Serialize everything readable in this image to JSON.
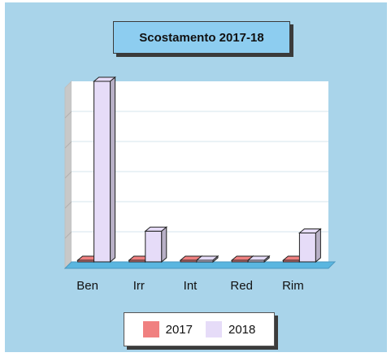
{
  "chart_data": {
    "type": "bar",
    "title": "Scostamento 2017-18",
    "categories": [
      "Ben",
      "Irr",
      "Int",
      "Red",
      "Rim"
    ],
    "series": [
      {
        "name": "2017",
        "color": "#f08080",
        "values": [
          0,
          0,
          0,
          0,
          0
        ]
      },
      {
        "name": "2018",
        "color": "#e6dcf8",
        "values": [
          100,
          17,
          0,
          0,
          16
        ]
      }
    ],
    "ylim": [
      0,
      100
    ],
    "grid": true,
    "legend_position": "bottom"
  }
}
